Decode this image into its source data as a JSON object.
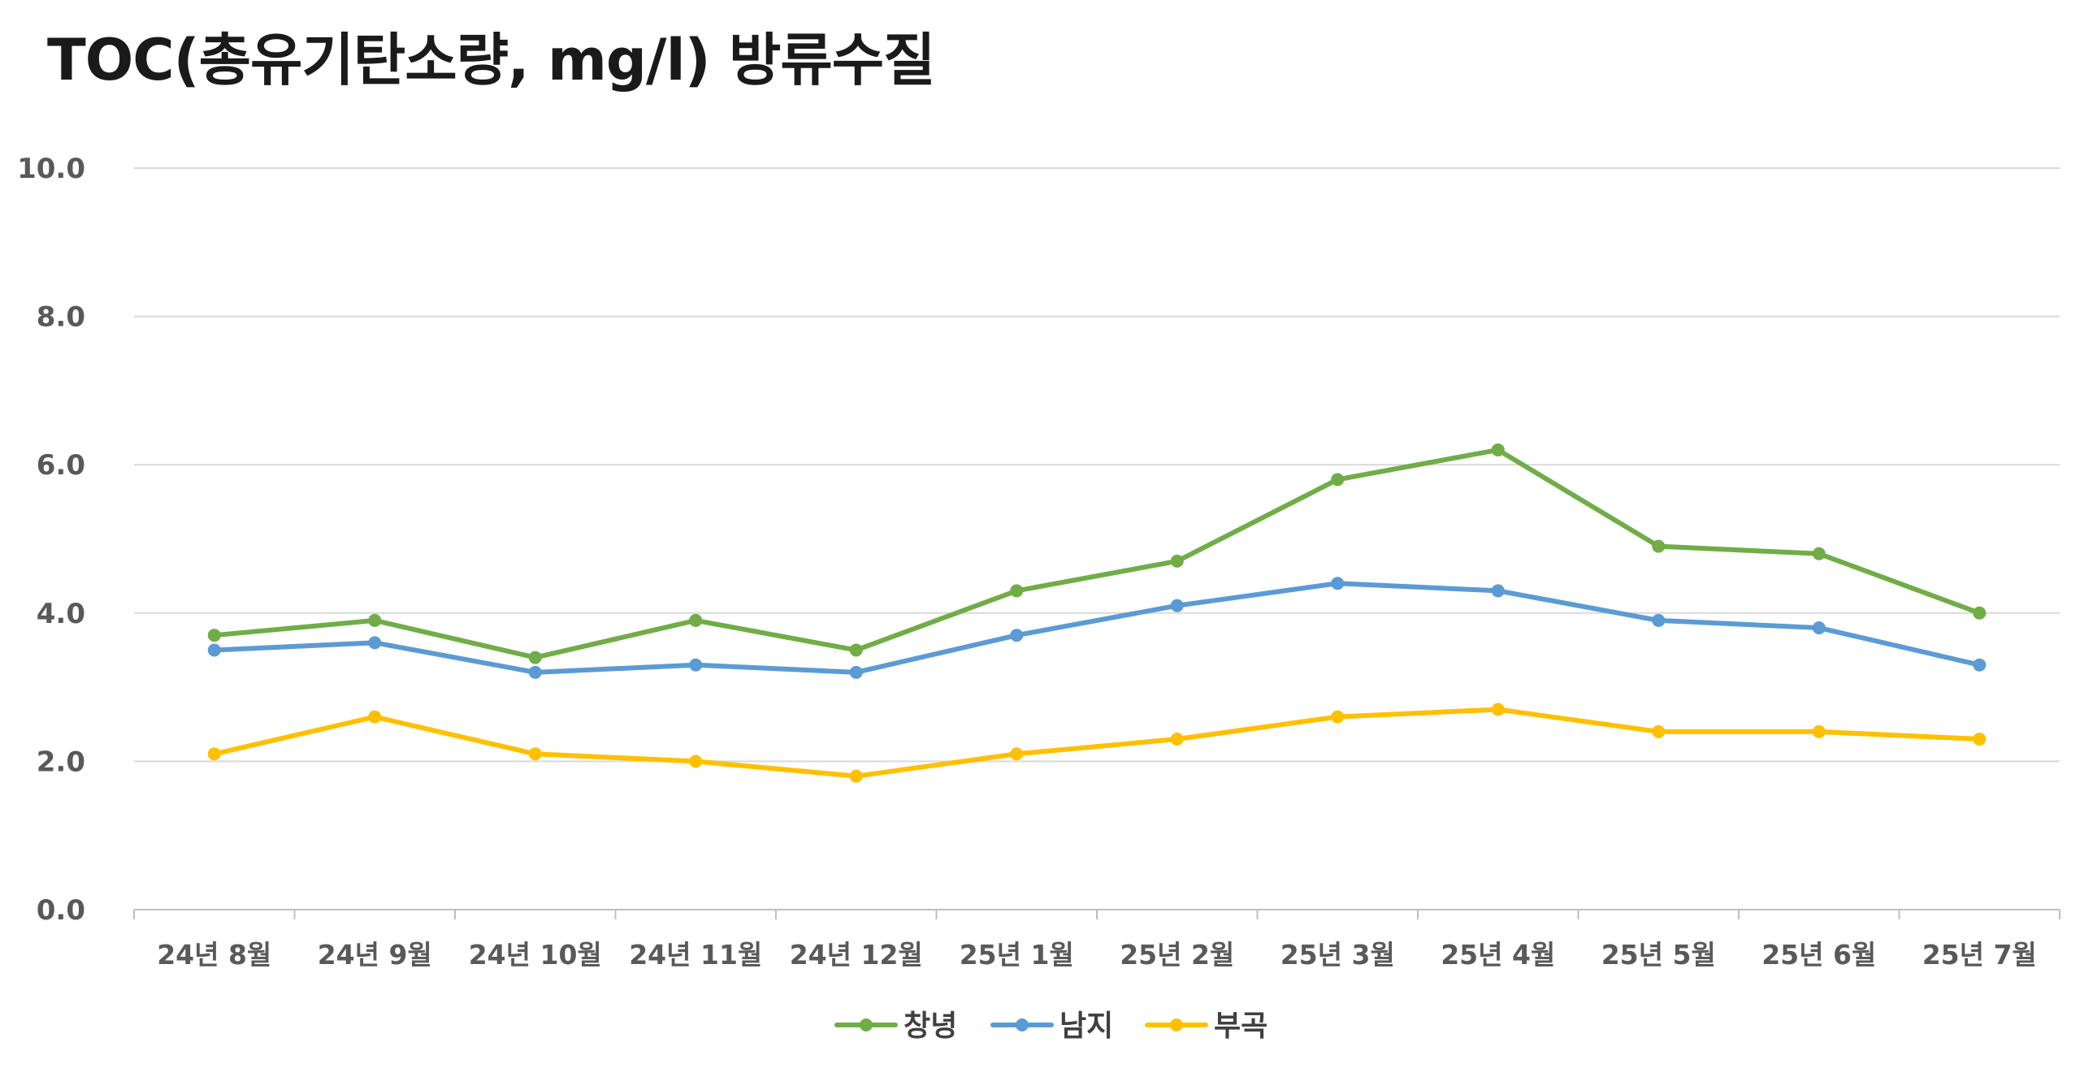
{
  "chart_data": {
    "type": "line",
    "title": "TOC(총유기탄소량, mg/l) 방류수질",
    "xlabel": "",
    "ylabel": "",
    "categories": [
      "24년 8월",
      "24년 9월",
      "24년 10월",
      "24년 11월",
      "24년 12월",
      "25년 1월",
      "25년 2월",
      "25년 3월",
      "25년 4월",
      "25년 5월",
      "25년 6월",
      "25년 7월"
    ],
    "ylim": [
      0,
      10
    ],
    "yticks": [
      "0.0",
      "2.0",
      "4.0",
      "6.0",
      "8.0",
      "10.0"
    ],
    "grid": true,
    "legend_position": "bottom",
    "series": [
      {
        "name": "창녕",
        "color": "#70AD47",
        "values": [
          3.7,
          3.9,
          3.4,
          3.9,
          3.5,
          4.3,
          4.7,
          5.8,
          6.2,
          4.9,
          4.8,
          4.0
        ]
      },
      {
        "name": "남지",
        "color": "#5B9BD5",
        "values": [
          3.5,
          3.6,
          3.2,
          3.3,
          3.2,
          3.7,
          4.1,
          4.4,
          4.3,
          3.9,
          3.8,
          3.3
        ]
      },
      {
        "name": "부곡",
        "color": "#FFC000",
        "values": [
          2.1,
          2.6,
          2.1,
          2.0,
          1.8,
          2.1,
          2.3,
          2.6,
          2.7,
          2.4,
          2.4,
          2.3
        ]
      }
    ]
  }
}
